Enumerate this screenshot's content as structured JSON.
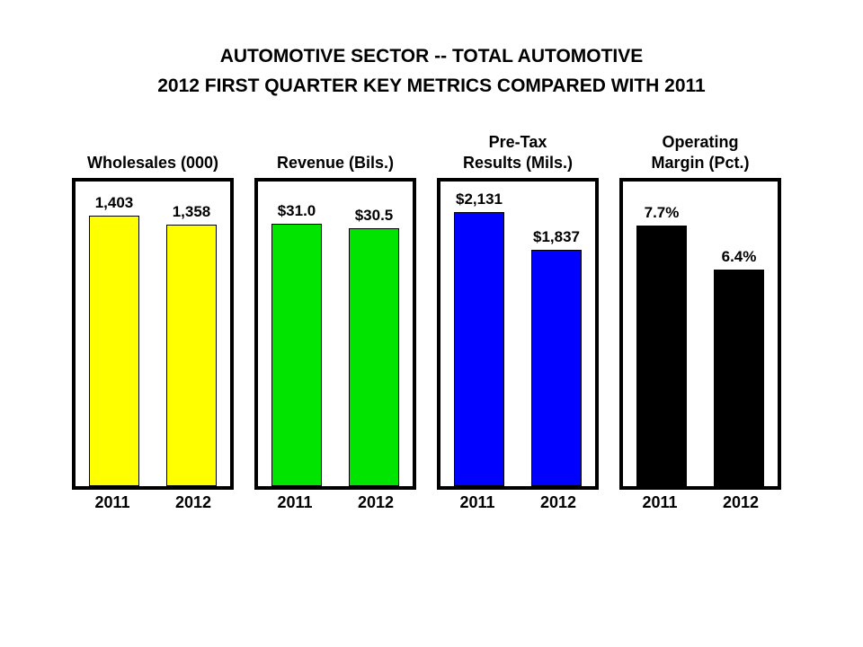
{
  "title_line1": "AUTOMOTIVE SECTOR -- TOTAL AUTOMOTIVE",
  "title_line2": "2012 FIRST QUARTER KEY METRICS COMPARED WITH 2011",
  "chart_data": {
    "type": "bar",
    "title": "AUTOMOTIVE SECTOR -- TOTAL AUTOMOTIVE",
    "subtitle": "2012 FIRST QUARTER KEY METRICS COMPARED WITH 2011",
    "categories": [
      "2011",
      "2012"
    ],
    "legend": "none",
    "grid": false,
    "panels": [
      {
        "title": "Wholesales (000)",
        "values": [
          1403,
          1358
        ],
        "value_labels": [
          "1,403",
          "1,358"
        ],
        "bar_color": "#FFFF00",
        "ylim": [
          0,
          1580
        ]
      },
      {
        "title": "Revenue (Bils.)",
        "values": [
          31.0,
          30.5
        ],
        "value_labels": [
          "$31.0",
          "$30.5"
        ],
        "bar_color": "#00E400",
        "ylim": [
          0,
          36
        ]
      },
      {
        "title": "Pre-Tax\nResults (Mils.)",
        "values": [
          2131,
          1837
        ],
        "value_labels": [
          "$2,131",
          "$1,837"
        ],
        "bar_color": "#0000FF",
        "ylim": [
          0,
          2370
        ]
      },
      {
        "title": "Operating\nMargin (Pct.)",
        "values": [
          7.7,
          6.4
        ],
        "value_labels": [
          "7.7%",
          "6.4%"
        ],
        "bar_color": "#000000",
        "ylim": [
          0,
          9
        ]
      }
    ]
  }
}
